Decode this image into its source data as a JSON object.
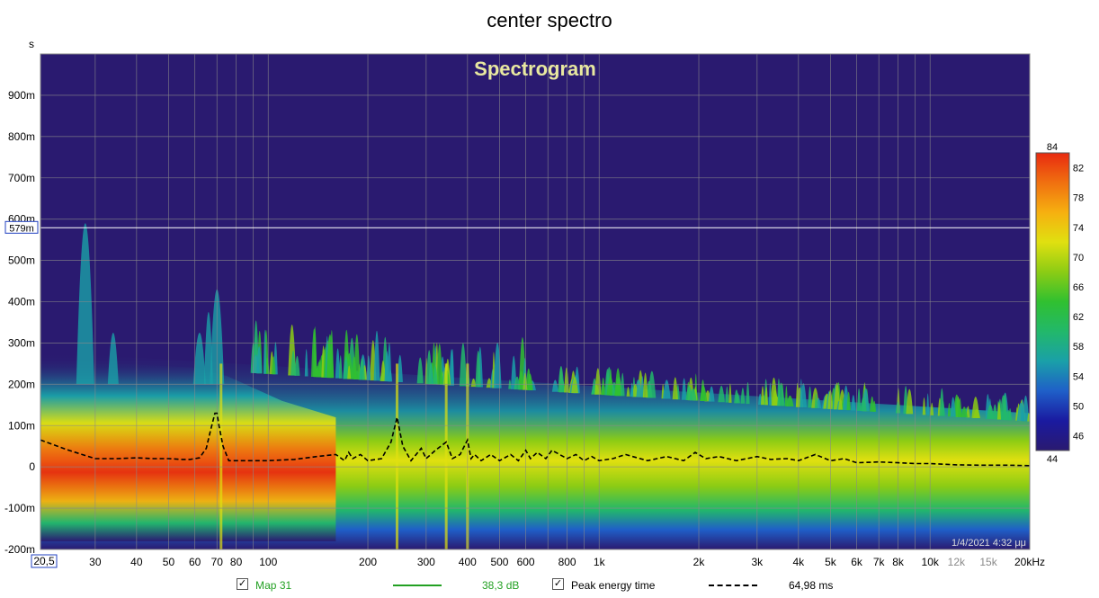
{
  "chart_data": {
    "type": "heatmap",
    "title": "center spectro",
    "inner_title": "Spectrogram",
    "ylabel": "s",
    "x_scale": "log",
    "x_range_hz": [
      20.5,
      20000
    ],
    "y_range_s": [
      -0.2,
      1.0
    ],
    "x_ticks": [
      {
        "label": "20,5",
        "value": 20.5,
        "boxed": true
      },
      {
        "label": "30",
        "value": 30
      },
      {
        "label": "40",
        "value": 40
      },
      {
        "label": "50",
        "value": 50
      },
      {
        "label": "60",
        "value": 60
      },
      {
        "label": "70",
        "value": 70
      },
      {
        "label": "80",
        "value": 80
      },
      {
        "label": "100",
        "value": 100
      },
      {
        "label": "200",
        "value": 200
      },
      {
        "label": "300",
        "value": 300
      },
      {
        "label": "400",
        "value": 400
      },
      {
        "label": "500",
        "value": 500
      },
      {
        "label": "600",
        "value": 600
      },
      {
        "label": "800",
        "value": 800
      },
      {
        "label": "1k",
        "value": 1000
      },
      {
        "label": "2k",
        "value": 2000
      },
      {
        "label": "3k",
        "value": 3000
      },
      {
        "label": "4k",
        "value": 4000
      },
      {
        "label": "5k",
        "value": 5000
      },
      {
        "label": "6k",
        "value": 6000
      },
      {
        "label": "7k",
        "value": 7000
      },
      {
        "label": "8k",
        "value": 8000
      },
      {
        "label": "10k",
        "value": 10000
      },
      {
        "label": "12k",
        "value": 12000,
        "grey": true
      },
      {
        "label": "15k",
        "value": 15000,
        "grey": true
      },
      {
        "label": "20kHz",
        "value": 20000
      }
    ],
    "x_grid_hz": [
      30,
      40,
      50,
      60,
      70,
      80,
      90,
      100,
      200,
      300,
      400,
      500,
      600,
      700,
      800,
      900,
      1000,
      2000,
      3000,
      4000,
      5000,
      6000,
      7000,
      8000,
      9000,
      10000,
      20000
    ],
    "y_ticks": [
      {
        "label": "900m",
        "value": 0.9
      },
      {
        "label": "800m",
        "value": 0.8
      },
      {
        "label": "700m",
        "value": 0.7
      },
      {
        "label": "600m",
        "value": 0.6
      },
      {
        "label": "500m",
        "value": 0.5
      },
      {
        "label": "400m",
        "value": 0.4
      },
      {
        "label": "300m",
        "value": 0.3
      },
      {
        "label": "200m",
        "value": 0.2
      },
      {
        "label": "100m",
        "value": 0.1
      },
      {
        "label": "0",
        "value": 0
      },
      {
        "label": "-100m",
        "value": -0.1
      },
      {
        "label": "-200m",
        "value": -0.2
      }
    ],
    "cursor": {
      "label": "579m",
      "value": 0.579
    },
    "colorbar": {
      "min": 44,
      "max": 84,
      "tick_labels": [
        "82",
        "78",
        "74",
        "70",
        "66",
        "62",
        "58",
        "54",
        "50",
        "46"
      ],
      "tick_values": [
        82,
        78,
        74,
        70,
        66,
        62,
        58,
        54,
        50,
        46
      ],
      "colors": [
        "#2a1a70",
        "#1a1aa0",
        "#1f5fc8",
        "#1aa0a8",
        "#22b86a",
        "#30c030",
        "#8ccc14",
        "#e0e010",
        "#f6b010",
        "#f07010",
        "#e82a10"
      ]
    },
    "background_color": "#2a1a70",
    "timestamp": "1/4/2021 4:32 μμ",
    "series": [
      {
        "name": "Peak energy time",
        "style": "dashed",
        "color": "#000000",
        "x": [
          20.5,
          25,
          30,
          35,
          40,
          45,
          50,
          55,
          58,
          62,
          65,
          67,
          69,
          70,
          71,
          73,
          76,
          80,
          90,
          100,
          120,
          140,
          160,
          170,
          175,
          180,
          190,
          200,
          220,
          235,
          245,
          255,
          270,
          290,
          300,
          320,
          345,
          360,
          380,
          400,
          410,
          420,
          440,
          470,
          500,
          540,
          570,
          600,
          620,
          650,
          690,
          720,
          800,
          850,
          900,
          950,
          1000,
          1100,
          1200,
          1400,
          1600,
          1800,
          1950,
          2100,
          2300,
          2600,
          3000,
          3300,
          3700,
          4000,
          4500,
          5000,
          5500,
          6000,
          7000,
          8000,
          9000,
          10000,
          12000,
          14000,
          17000,
          20000
        ],
        "y": [
          0.065,
          0.04,
          0.02,
          0.02,
          0.022,
          0.02,
          0.02,
          0.018,
          0.018,
          0.022,
          0.045,
          0.09,
          0.13,
          0.13,
          0.1,
          0.05,
          0.015,
          0.015,
          0.015,
          0.015,
          0.018,
          0.025,
          0.03,
          0.015,
          0.035,
          0.02,
          0.03,
          0.015,
          0.02,
          0.06,
          0.12,
          0.05,
          0.015,
          0.045,
          0.02,
          0.04,
          0.06,
          0.02,
          0.03,
          0.065,
          0.02,
          0.03,
          0.015,
          0.03,
          0.015,
          0.03,
          0.015,
          0.04,
          0.02,
          0.035,
          0.02,
          0.04,
          0.02,
          0.03,
          0.015,
          0.025,
          0.015,
          0.02,
          0.03,
          0.015,
          0.025,
          0.015,
          0.035,
          0.02,
          0.025,
          0.015,
          0.025,
          0.018,
          0.02,
          0.015,
          0.03,
          0.015,
          0.02,
          0.01,
          0.012,
          0.01,
          0.008,
          0.008,
          0.005,
          0.004,
          0.004,
          0.003
        ]
      }
    ],
    "ridge_peaks_hz": [
      72,
      245,
      345,
      400
    ]
  },
  "legend": {
    "item1_label": "Мар 31",
    "item1_value": "38,3 dB",
    "item1_color": "#22a022",
    "item2_label": "Peak energy time",
    "item2_value": "64,98 ms"
  }
}
